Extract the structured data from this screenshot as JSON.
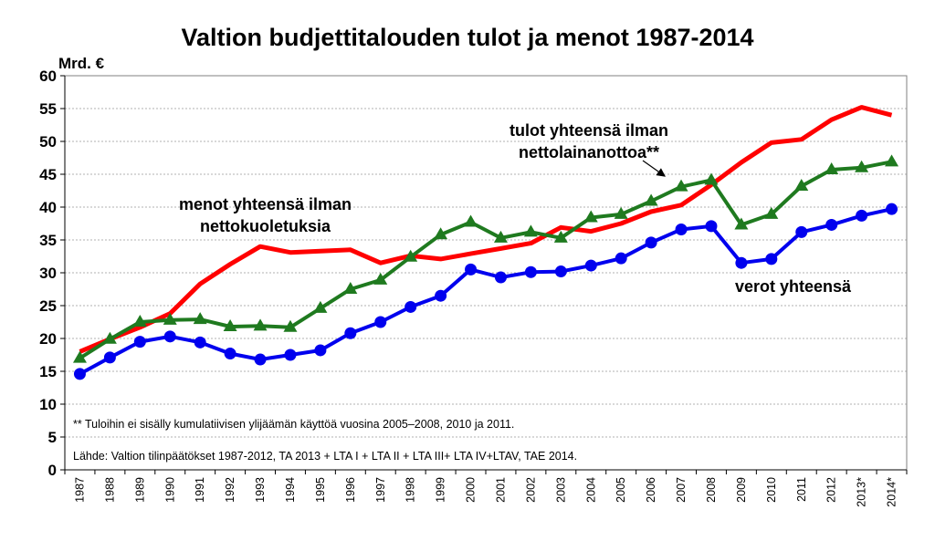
{
  "chart_data": {
    "type": "line",
    "title": "Valtion budjettitalouden tulot ja menot 1987-2014",
    "ylabel": "Mrd. €",
    "ylim": [
      0,
      60
    ],
    "yticks": [
      0,
      5,
      10,
      15,
      20,
      25,
      30,
      35,
      40,
      45,
      50,
      55,
      60
    ],
    "grid": true,
    "categories": [
      "1987",
      "1988",
      "1989",
      "1990",
      "1991",
      "1992",
      "1993",
      "1994",
      "1995",
      "1996",
      "1997",
      "1998",
      "1999",
      "2000",
      "2001",
      "2002",
      "2003",
      "2004",
      "2005",
      "2006",
      "2007",
      "2008",
      "2009",
      "2010",
      "2011",
      "2012",
      "2013*",
      "2014*"
    ],
    "series": [
      {
        "name": "menot yhteensä ilman nettokuoletuksia",
        "color": "#ff0000",
        "marker": "none",
        "values": [
          18.0,
          19.9,
          21.7,
          23.8,
          28.3,
          31.3,
          34.0,
          33.1,
          33.3,
          33.5,
          31.5,
          32.6,
          32.1,
          32.9,
          33.7,
          34.5,
          36.9,
          36.3,
          37.5,
          39.3,
          40.3,
          43.4,
          46.8,
          49.8,
          50.3,
          53.3,
          55.2,
          54.0
        ]
      },
      {
        "name": "tulot yhteensä ilman nettolainanottoa**",
        "color": "#1f7a1f",
        "marker": "triangle",
        "values": [
          17.0,
          19.9,
          22.5,
          22.8,
          22.9,
          21.8,
          21.9,
          21.7,
          24.6,
          27.5,
          28.9,
          32.4,
          35.8,
          37.7,
          35.3,
          36.2,
          35.3,
          38.4,
          38.9,
          40.9,
          43.1,
          44.1,
          37.3,
          38.9,
          43.2,
          45.7,
          46.0,
          46.9
        ]
      },
      {
        "name": "verot yhteensä",
        "color": "#0000ee",
        "marker": "circle",
        "values": [
          14.6,
          17.1,
          19.5,
          20.3,
          19.4,
          17.7,
          16.8,
          17.5,
          18.2,
          20.8,
          22.5,
          24.8,
          26.5,
          30.5,
          29.3,
          30.1,
          30.2,
          31.1,
          32.2,
          34.6,
          36.6,
          37.1,
          31.5,
          32.1,
          36.2,
          37.3,
          38.7,
          39.7
        ]
      }
    ],
    "annotations": {
      "menot_line1": "menot yhteensä ilman",
      "menot_line2": "nettokuoletuksia",
      "tulot_line1": "tulot yhteensä ilman",
      "tulot_line2": "nettolainanottoa**",
      "verot": "verot yhteensä"
    },
    "footnote": "** Tuloihin ei sisälly kumulatiivisen ylijäämän käyttöä vuosina 2005–2008, 2010 ja 2011.",
    "source": "Lähde: Valtion tilinpäätökset 1987-2012, TA 2013 + LTA I + LTA II + LTA III+ LTA IV+LTAV, TAE 2014."
  }
}
